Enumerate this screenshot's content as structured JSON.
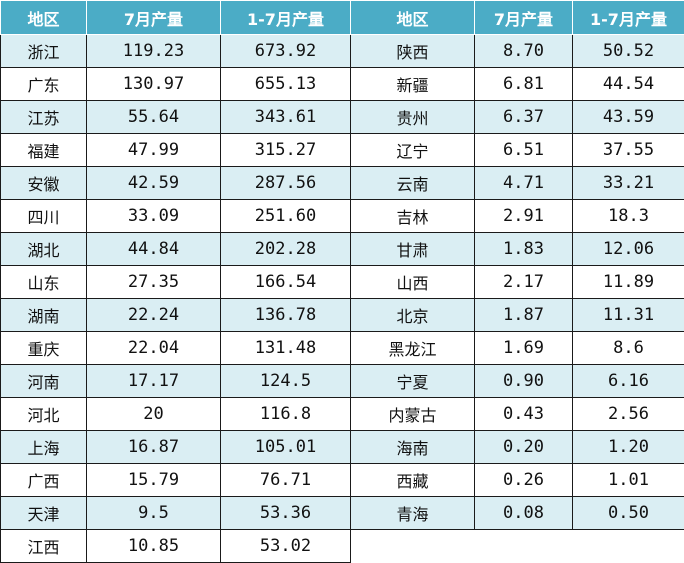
{
  "headers": [
    "地区",
    "7月产量",
    "1-7月产量",
    "地区",
    "7月产量",
    "1-7月产量"
  ],
  "rows": [
    {
      "left": {
        "region": "浙江",
        "july": "119.23",
        "ytd": "673.92"
      },
      "right": {
        "region": "陕西",
        "july": "8.70",
        "ytd": "50.52"
      }
    },
    {
      "left": {
        "region": "广东",
        "july": "130.97",
        "ytd": "655.13"
      },
      "right": {
        "region": "新疆",
        "july": "6.81",
        "ytd": "44.54"
      }
    },
    {
      "left": {
        "region": "江苏",
        "july": "55.64",
        "ytd": "343.61"
      },
      "right": {
        "region": "贵州",
        "july": "6.37",
        "ytd": "43.59"
      }
    },
    {
      "left": {
        "region": "福建",
        "july": "47.99",
        "ytd": "315.27"
      },
      "right": {
        "region": "辽宁",
        "july": "6.51",
        "ytd": "37.55"
      }
    },
    {
      "left": {
        "region": "安徽",
        "july": "42.59",
        "ytd": "287.56"
      },
      "right": {
        "region": "云南",
        "july": "4.71",
        "ytd": "33.21"
      }
    },
    {
      "left": {
        "region": "四川",
        "july": "33.09",
        "ytd": "251.60"
      },
      "right": {
        "region": "吉林",
        "july": "2.91",
        "ytd": "18.3"
      }
    },
    {
      "left": {
        "region": "湖北",
        "july": "44.84",
        "ytd": "202.28"
      },
      "right": {
        "region": "甘肃",
        "july": "1.83",
        "ytd": "12.06"
      }
    },
    {
      "left": {
        "region": "山东",
        "july": "27.35",
        "ytd": "166.54"
      },
      "right": {
        "region": "山西",
        "july": "2.17",
        "ytd": "11.89"
      }
    },
    {
      "left": {
        "region": "湖南",
        "july": "22.24",
        "ytd": "136.78"
      },
      "right": {
        "region": "北京",
        "july": "1.87",
        "ytd": "11.31"
      }
    },
    {
      "left": {
        "region": "重庆",
        "july": "22.04",
        "ytd": "131.48"
      },
      "right": {
        "region": "黑龙江",
        "july": "1.69",
        "ytd": "8.6"
      }
    },
    {
      "left": {
        "region": "河南",
        "july": "17.17",
        "ytd": "124.5"
      },
      "right": {
        "region": "宁夏",
        "july": "0.90",
        "ytd": "6.16"
      }
    },
    {
      "left": {
        "region": "河北",
        "july": "20",
        "ytd": "116.8"
      },
      "right": {
        "region": "内蒙古",
        "july": "0.43",
        "ytd": "2.56"
      }
    },
    {
      "left": {
        "region": "上海",
        "july": "16.87",
        "ytd": "105.01"
      },
      "right": {
        "region": "海南",
        "july": "0.20",
        "ytd": "1.20"
      }
    },
    {
      "left": {
        "region": "广西",
        "july": "15.79",
        "ytd": "76.71"
      },
      "right": {
        "region": "西藏",
        "july": "0.26",
        "ytd": "1.01"
      }
    },
    {
      "left": {
        "region": "天津",
        "july": "9.5",
        "ytd": "53.36"
      },
      "right": {
        "region": "青海",
        "july": "0.08",
        "ytd": "0.50"
      }
    },
    {
      "left": {
        "region": "江西",
        "july": "10.85",
        "ytd": "53.02"
      },
      "right": null
    }
  ],
  "colors": {
    "header_bg": "#4bacc6",
    "header_text": "#ffffff",
    "stripe_bg": "#daeef3",
    "border": "#1a1a1a"
  }
}
